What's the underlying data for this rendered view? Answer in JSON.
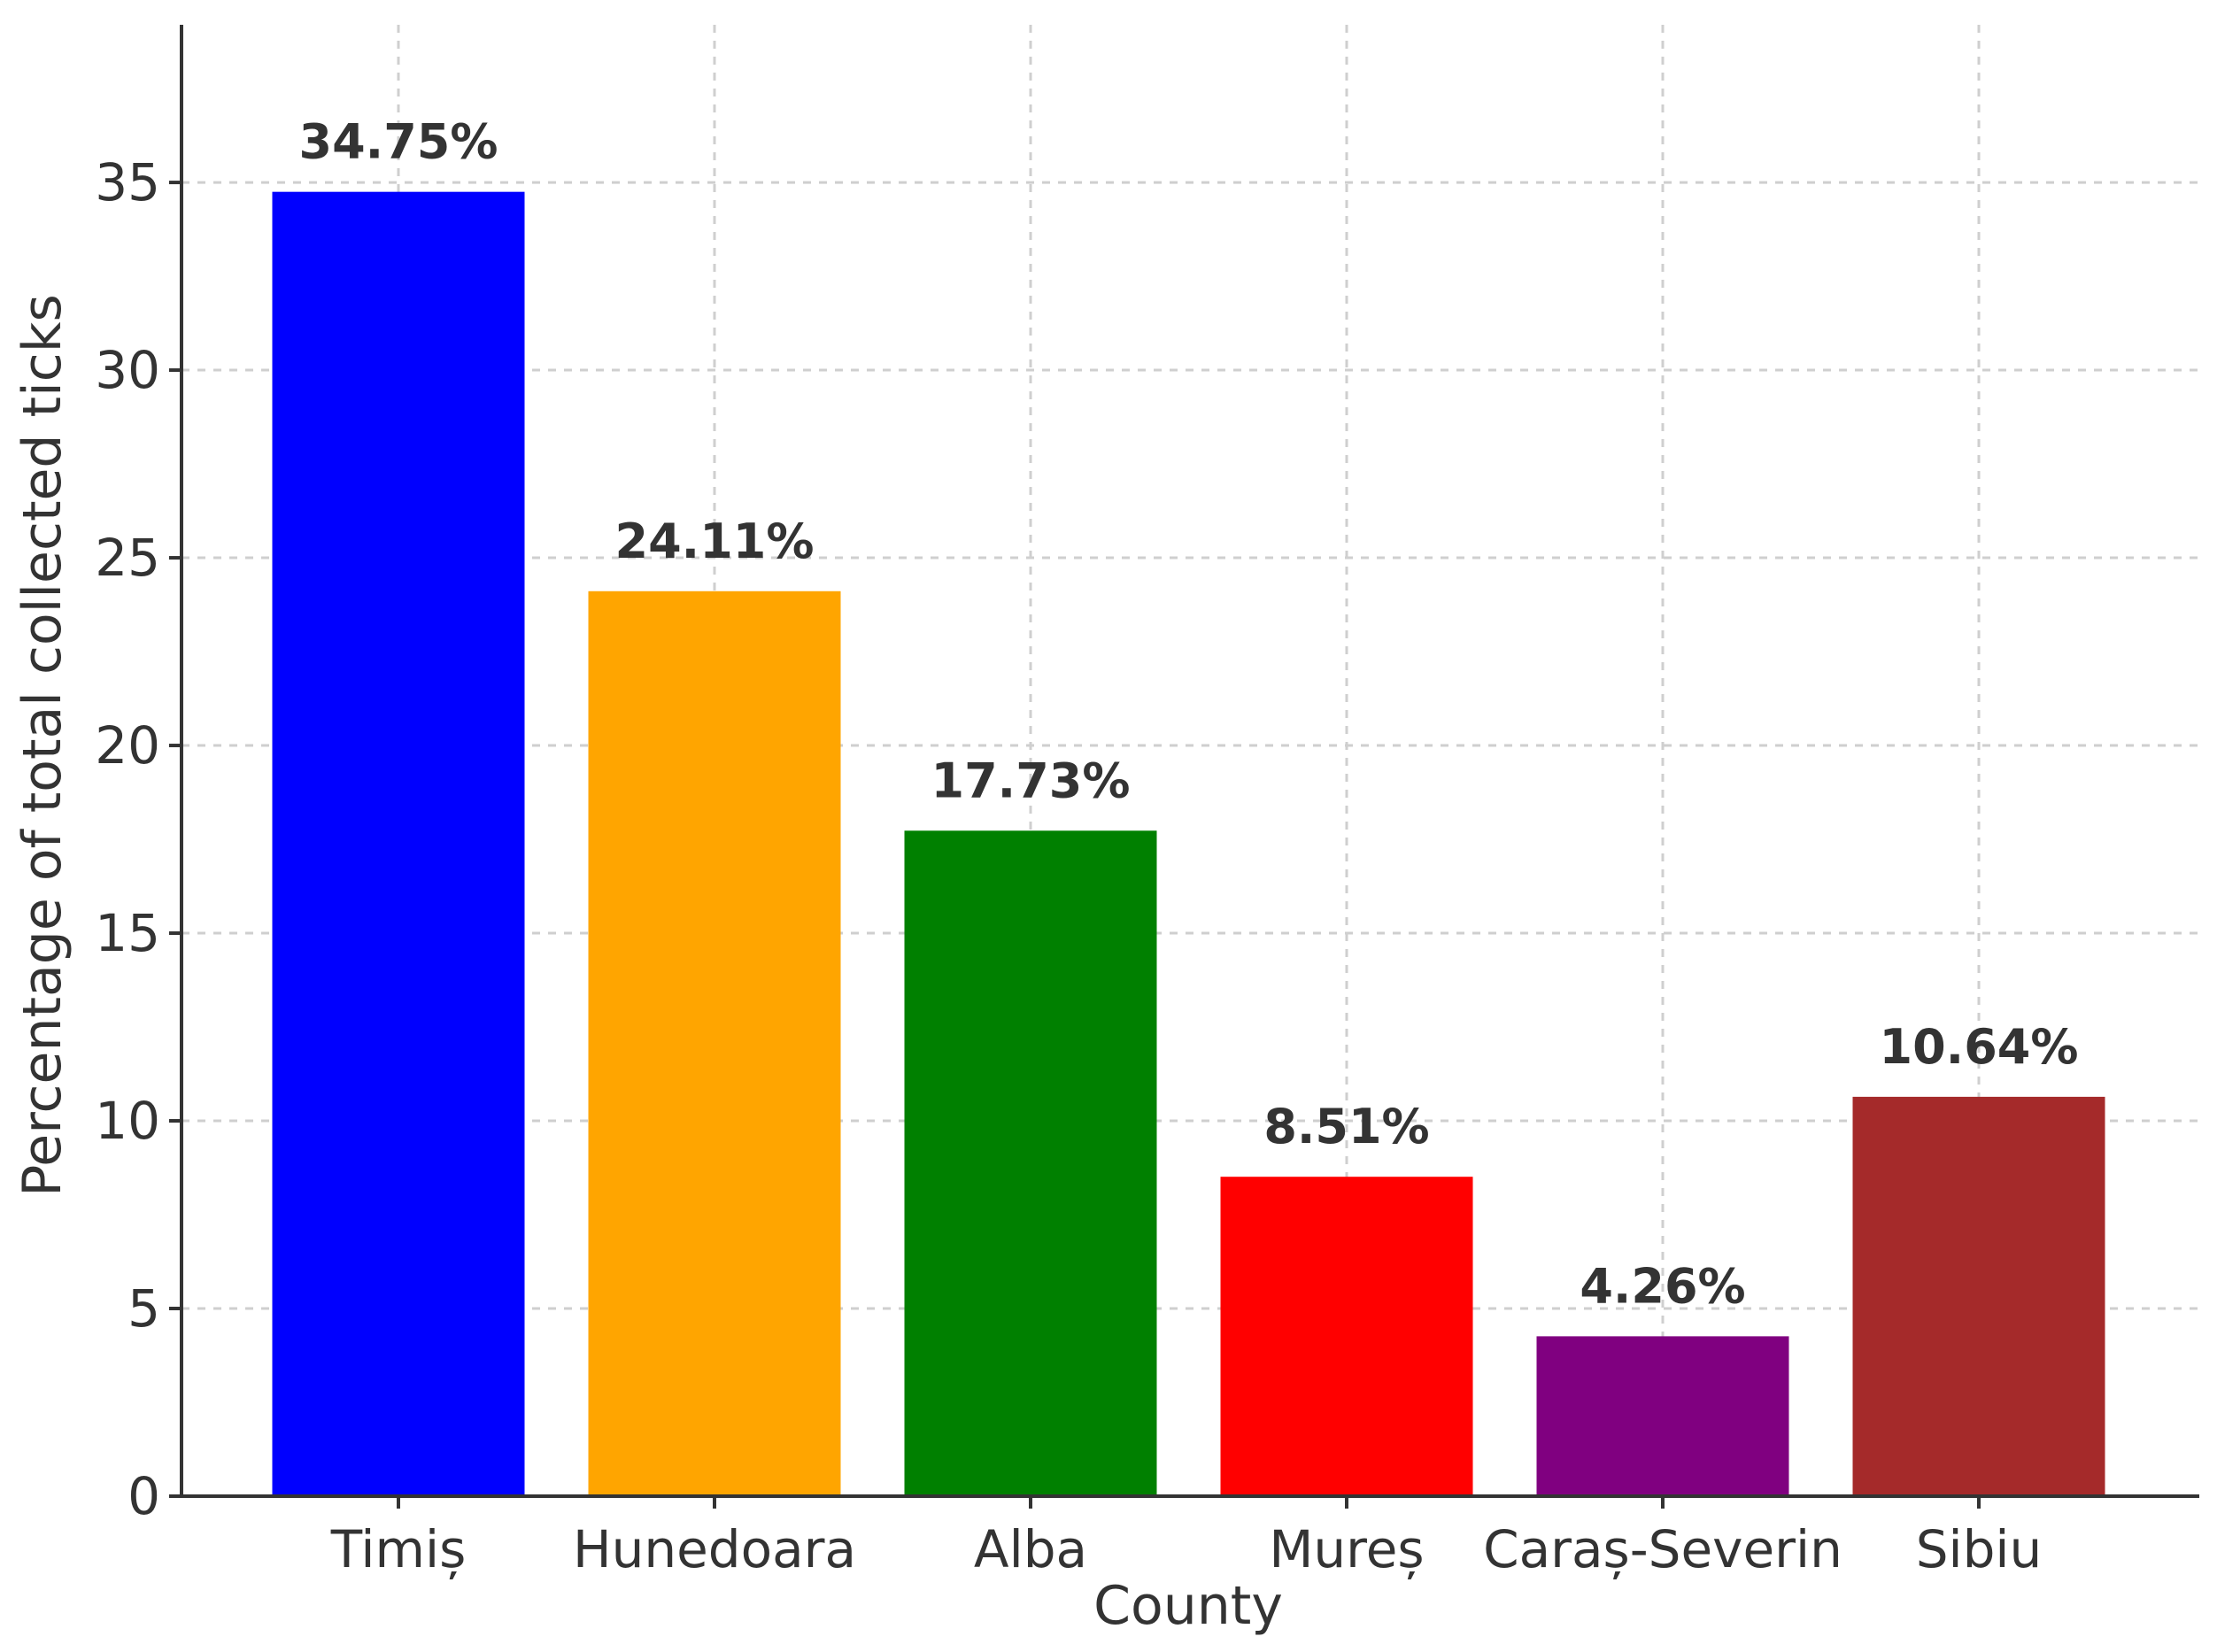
{
  "chart_data": {
    "type": "bar",
    "title": "",
    "xlabel": "County",
    "ylabel": "Percentage of total collected ticks",
    "categories": [
      "Timiș",
      "Hunedoara",
      "Alba",
      "Mureș",
      "Caraș-Severin",
      "Sibiu"
    ],
    "values": [
      34.75,
      24.11,
      17.73,
      8.51,
      4.26,
      10.64
    ],
    "data_labels": [
      "34.75%",
      "24.11%",
      "17.73%",
      "8.51%",
      "4.26%",
      "10.64%"
    ],
    "colors": [
      "#0000ff",
      "#ffa500",
      "#008000",
      "#ff0000",
      "#800080",
      "#a52a2a"
    ],
    "ylim": [
      0,
      39.2
    ],
    "yticks": [
      0,
      5,
      10,
      15,
      20,
      25,
      30,
      35
    ],
    "grid": true,
    "legend": "none"
  }
}
